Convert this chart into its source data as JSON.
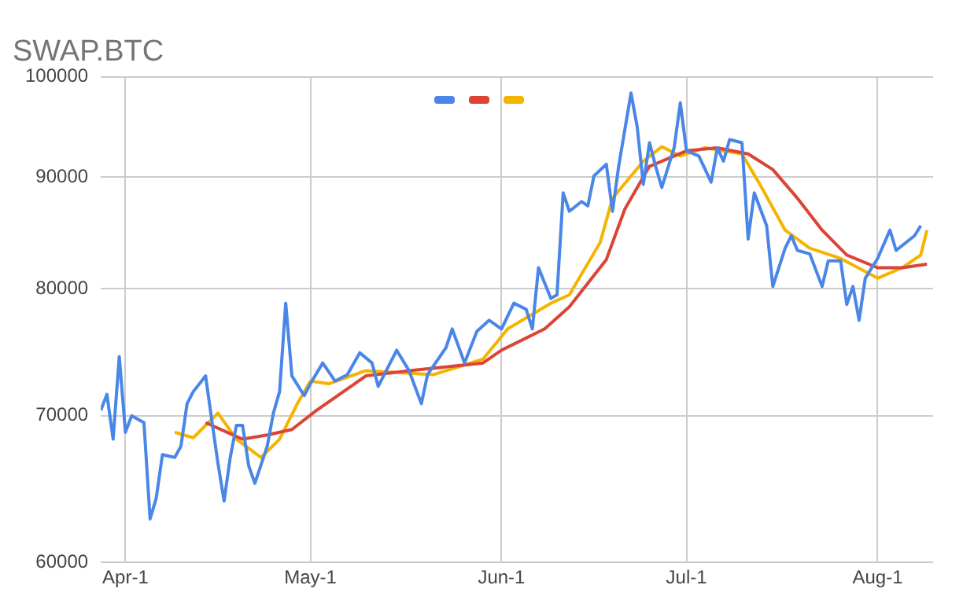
{
  "chart_data": {
    "type": "line",
    "title": "SWAP.BTC",
    "log": "y",
    "grid": true,
    "marker": "none",
    "line_style": "solid",
    "xlim": [
      "--03-28",
      "--08-10"
    ],
    "xticks": [
      {
        "value": "--04-01",
        "label": "Apr-1"
      },
      {
        "value": "--05-01",
        "label": "May-1"
      },
      {
        "value": "--06-01",
        "label": "Jun-1"
      },
      {
        "value": "--07-01",
        "label": "Jul-1"
      },
      {
        "value": "--08-01",
        "label": "Aug-1"
      }
    ],
    "ylim": [
      60000,
      100000
    ],
    "yticks": [
      60000,
      70000,
      80000,
      90000,
      100000
    ],
    "series": [
      {
        "color": "#4a86e8",
        "x": [
          "--03-28",
          "--03-29",
          "--03-30",
          "--03-31",
          "--04-01",
          "--04-02",
          "--04-04",
          "--04-05",
          "--04-06",
          "--04-07",
          "--04-09",
          "--04-10",
          "--04-11",
          "--04-12",
          "--04-14",
          "--04-15",
          "--04-16",
          "--04-17",
          "--04-18",
          "--04-19",
          "--04-20",
          "--04-21",
          "--04-22",
          "--04-24",
          "--04-25",
          "--04-26",
          "--04-27",
          "--04-28",
          "--04-30",
          "--05-01",
          "--05-03",
          "--05-05",
          "--05-07",
          "--05-09",
          "--05-11",
          "--05-12",
          "--05-15",
          "--05-17",
          "--05-19",
          "--05-20",
          "--05-23",
          "--05-24",
          "--05-26",
          "--05-28",
          "--05-30",
          "--06-01",
          "--06-03",
          "--06-05",
          "--06-06",
          "--06-07",
          "--06-09",
          "--06-10",
          "--06-11",
          "--06-12",
          "--06-14",
          "--06-15",
          "--06-16",
          "--06-18",
          "--06-19",
          "--06-20",
          "--06-22",
          "--06-23",
          "--06-24",
          "--06-25",
          "--06-26",
          "--06-27",
          "--06-29",
          "--06-30",
          "--07-01",
          "--07-03",
          "--07-05",
          "--07-06",
          "--07-07",
          "--07-08",
          "--07-10",
          "--07-11",
          "--07-12",
          "--07-14",
          "--07-15",
          "--07-17",
          "--07-18",
          "--07-19",
          "--07-21",
          "--07-23",
          "--07-24",
          "--07-26",
          "--07-27",
          "--07-28",
          "--07-29",
          "--07-30",
          "--08-01",
          "--08-03",
          "--08-04",
          "--08-07",
          "--08-08"
        ],
        "values": [
          70400,
          71600,
          68300,
          74500,
          68800,
          70000,
          69500,
          62800,
          64200,
          67200,
          67000,
          67800,
          70900,
          71800,
          73000,
          69700,
          66600,
          64000,
          67000,
          69300,
          69300,
          66400,
          65200,
          67800,
          70200,
          71800,
          78800,
          73000,
          71500,
          72400,
          74000,
          72600,
          73100,
          74800,
          74000,
          72200,
          75000,
          73400,
          70900,
          73100,
          75200,
          76700,
          74000,
          76500,
          77400,
          76700,
          78800,
          78300,
          76700,
          81800,
          79200,
          79500,
          88500,
          86800,
          87700,
          87300,
          90100,
          91200,
          86800,
          91000,
          98300,
          94900,
          89300,
          93300,
          91000,
          89000,
          92800,
          97300,
          92500,
          92000,
          89500,
          92800,
          91500,
          93600,
          93300,
          84300,
          88500,
          85500,
          80200,
          83500,
          84600,
          83300,
          83000,
          80200,
          82400,
          82400,
          78700,
          80200,
          77400,
          80900,
          82600,
          85100,
          83300,
          84600,
          85500
        ]
      },
      {
        "color": "#db4437",
        "x": [
          "--04-14",
          "--04-20",
          "--04-24",
          "--04-28",
          "--05-02",
          "--05-10",
          "--05-17",
          "--05-29",
          "--06-01",
          "--06-08",
          "--06-12",
          "--06-18",
          "--06-21",
          "--06-25",
          "--07-01",
          "--07-06",
          "--07-11",
          "--07-15",
          "--07-19",
          "--07-23",
          "--07-27",
          "--08-01",
          "--08-05",
          "--08-09"
        ],
        "values": [
          69500,
          68300,
          68600,
          69000,
          70400,
          73000,
          73400,
          74000,
          75000,
          76700,
          78500,
          82500,
          87000,
          91000,
          92500,
          92800,
          92200,
          90700,
          88000,
          85100,
          82900,
          81800,
          81800,
          82100
        ]
      },
      {
        "color": "#f4b400",
        "x": [
          "--04-09",
          "--04-12",
          "--04-16",
          "--04-19",
          "--04-23",
          "--04-26",
          "--04-29",
          "--05-01",
          "--05-04",
          "--05-10",
          "--05-21",
          "--05-29",
          "--06-02",
          "--06-09",
          "--06-12",
          "--06-17",
          "--06-19",
          "--06-24",
          "--06-27",
          "--06-30",
          "--07-04",
          "--07-10",
          "--07-13",
          "--07-17",
          "--07-21",
          "--07-26",
          "--08-01",
          "--08-05",
          "--08-08",
          "--08-09"
        ],
        "values": [
          68800,
          68400,
          70200,
          68300,
          67000,
          68300,
          71000,
          72600,
          72400,
          73400,
          73100,
          74300,
          76700,
          78800,
          79500,
          84000,
          88000,
          91500,
          92900,
          92000,
          92800,
          92200,
          89200,
          85100,
          83500,
          82600,
          80900,
          81800,
          82900,
          85100
        ]
      }
    ]
  }
}
